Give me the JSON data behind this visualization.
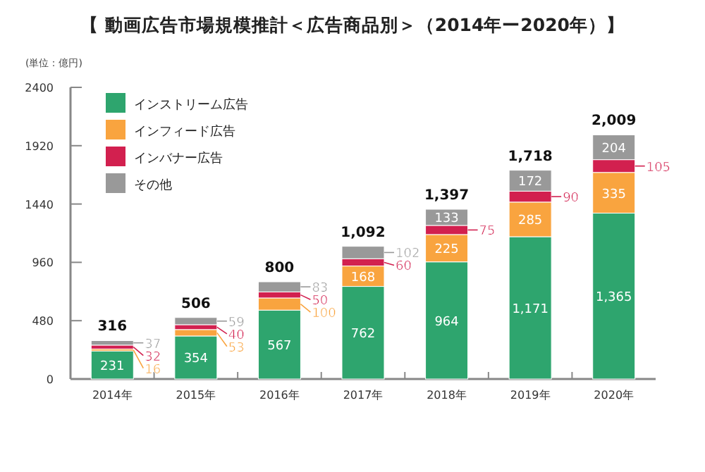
{
  "chart_data": {
    "type": "bar",
    "stacked": true,
    "title": "【 動画広告市場規模推計＜広告商品別＞（2014年ー2020年）】",
    "ylabel": "(単位：億円)",
    "categories": [
      "2014年",
      "2015年",
      "2016年",
      "2017年",
      "2018年",
      "2019年",
      "2020年"
    ],
    "ylim": [
      0,
      2400
    ],
    "yticks": [
      0,
      480,
      960,
      1440,
      1920,
      2400
    ],
    "legend": "top left",
    "grid": false,
    "series": [
      {
        "name": "インストリーム広告",
        "color": "#2ea56e",
        "values": [
          231,
          354,
          567,
          762,
          964,
          1171,
          1365
        ],
        "value_labels": [
          "231",
          "354",
          "567",
          "762",
          "964",
          "1,171",
          "1,365"
        ]
      },
      {
        "name": "インフィード広告",
        "color": "#f9a43f",
        "values": [
          16,
          53,
          100,
          168,
          225,
          285,
          335
        ],
        "value_labels": [
          "16",
          "53",
          "100",
          "168",
          "225",
          "285",
          "335"
        ]
      },
      {
        "name": "インバナー広告",
        "color": "#d2204f",
        "values": [
          32,
          40,
          50,
          60,
          75,
          90,
          105
        ],
        "value_labels": [
          "32",
          "40",
          "50",
          "60",
          "75",
          "90",
          "105"
        ]
      },
      {
        "name": "その他",
        "color": "#999999",
        "values": [
          37,
          59,
          83,
          102,
          133,
          172,
          204
        ],
        "value_labels": [
          "37",
          "59",
          "83",
          "102",
          "133",
          "172",
          "204"
        ]
      }
    ],
    "totals": [
      "316",
      "506",
      "800",
      "1,092",
      "1,397",
      "1,718",
      "2,009"
    ]
  }
}
